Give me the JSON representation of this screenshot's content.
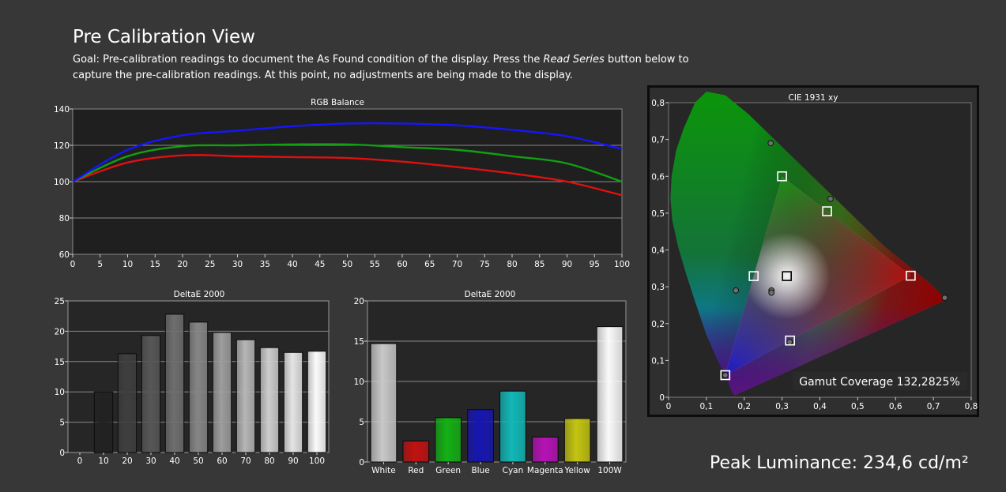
{
  "page": {
    "title": "Pre Calibration View",
    "goal_before": "Goal: Pre-calibration readings to document the As Found condition of the display. Press the ",
    "goal_emph": "Read Series",
    "goal_after": " button below to capture the pre-calibration readings. At this point, no adjustments are being made to the display.",
    "peak_luminance": "Peak Luminance: 234,6 cd/m²"
  },
  "chart_data": [
    {
      "id": "rgb",
      "type": "line",
      "title": "RGB Balance",
      "x": [
        0,
        10,
        20,
        30,
        40,
        50,
        60,
        70,
        80,
        90,
        100
      ],
      "xticks": [
        "0",
        "5",
        "10",
        "15",
        "20",
        "25",
        "30",
        "35",
        "40",
        "45",
        "50",
        "55",
        "60",
        "65",
        "70",
        "75",
        "80",
        "85",
        "90",
        "95",
        "100"
      ],
      "ylim": [
        60,
        140
      ],
      "yticks": [
        "60",
        "80",
        "100",
        "120",
        "140"
      ],
      "grid": true,
      "series": [
        {
          "color": "#e01010",
          "values": [
            100,
            110.5,
            114.5,
            114,
            113.5,
            113,
            111,
            108,
            104.5,
            100,
            92.5
          ]
        },
        {
          "color": "#10a010",
          "values": [
            100,
            114,
            119.5,
            120,
            120.5,
            120.5,
            119,
            117.5,
            114,
            110,
            100
          ]
        },
        {
          "color": "#1515ff",
          "values": [
            100,
            117.5,
            125.5,
            128,
            130.5,
            132,
            132,
            131,
            128.5,
            125,
            118
          ]
        }
      ]
    },
    {
      "id": "grayscale",
      "type": "bar",
      "title": "DeltaE 2000",
      "categories": [
        "0",
        "10",
        "20",
        "30",
        "40",
        "50",
        "60",
        "70",
        "80",
        "90",
        "100"
      ],
      "values": [
        0,
        10,
        16.3,
        19.3,
        22.8,
        21.5,
        19.8,
        18.6,
        17.3,
        16.5,
        16.7
      ],
      "bar_colors": [
        "#000000",
        "#222222",
        "#3f3f3f",
        "#575757",
        "#6e6e6e",
        "#868686",
        "#9d9d9d",
        "#b5b5b5",
        "#cdcdcd",
        "#e4e4e4",
        "#fbfbfb"
      ],
      "ylim": [
        0,
        25
      ],
      "yticks": [
        "0",
        "5",
        "10",
        "15",
        "20",
        "25"
      ],
      "grid": true
    },
    {
      "id": "colors",
      "type": "bar",
      "title": "DeltaE 2000",
      "categories": [
        "White",
        "Red",
        "Green",
        "Blue",
        "Cyan",
        "Magenta",
        "Yellow",
        "100W"
      ],
      "values": [
        14.7,
        2.6,
        5.5,
        6.5,
        8.8,
        3.1,
        5.4,
        16.8
      ],
      "bar_colors": [
        "#c8c8c8",
        "#c21212",
        "#14b014",
        "#1616b2",
        "#12b8b8",
        "#b612b6",
        "#c4c412",
        "#fafafa"
      ],
      "ylim": [
        0,
        20
      ],
      "yticks": [
        "0",
        "5",
        "10",
        "15",
        "20"
      ],
      "grid": true
    },
    {
      "id": "cie",
      "type": "scatter",
      "title": "CIE 1931 xy",
      "xlim": [
        0,
        0.8
      ],
      "ylim": [
        0,
        0.8
      ],
      "xticks": [
        "0",
        "0,1",
        "0,2",
        "0,3",
        "0,4",
        "0,5",
        "0,6",
        "0,7",
        "0,8"
      ],
      "yticks": [
        "0",
        "0,1",
        "0,2",
        "0,3",
        "0,4",
        "0,5",
        "0,6",
        "0,7",
        "0,8"
      ],
      "gamut_coverage": "Gamut Coverage 132,2825%",
      "gamut_triangle": [
        [
          0.64,
          0.33
        ],
        [
          0.3,
          0.6
        ],
        [
          0.15,
          0.06
        ]
      ],
      "targets": [
        {
          "name": "red",
          "x": 0.64,
          "y": 0.33
        },
        {
          "name": "green",
          "x": 0.3,
          "y": 0.6
        },
        {
          "name": "blue",
          "x": 0.15,
          "y": 0.06
        },
        {
          "name": "cyan",
          "x": 0.225,
          "y": 0.329
        },
        {
          "name": "magenta",
          "x": 0.321,
          "y": 0.154
        },
        {
          "name": "yellow",
          "x": 0.419,
          "y": 0.505
        },
        {
          "name": "white",
          "x": 0.3127,
          "y": 0.329
        }
      ],
      "measured": [
        {
          "name": "red",
          "x": 0.73,
          "y": 0.27
        },
        {
          "name": "green",
          "x": 0.27,
          "y": 0.69
        },
        {
          "name": "blue",
          "x": 0.15,
          "y": 0.06
        },
        {
          "name": "cyan",
          "x": 0.178,
          "y": 0.29
        },
        {
          "name": "magenta",
          "x": 0.32,
          "y": 0.15
        },
        {
          "name": "yellow",
          "x": 0.428,
          "y": 0.539
        },
        {
          "name": "white",
          "x": 0.272,
          "y": 0.29
        },
        {
          "name": "white-2",
          "x": 0.272,
          "y": 0.284
        }
      ]
    }
  ]
}
